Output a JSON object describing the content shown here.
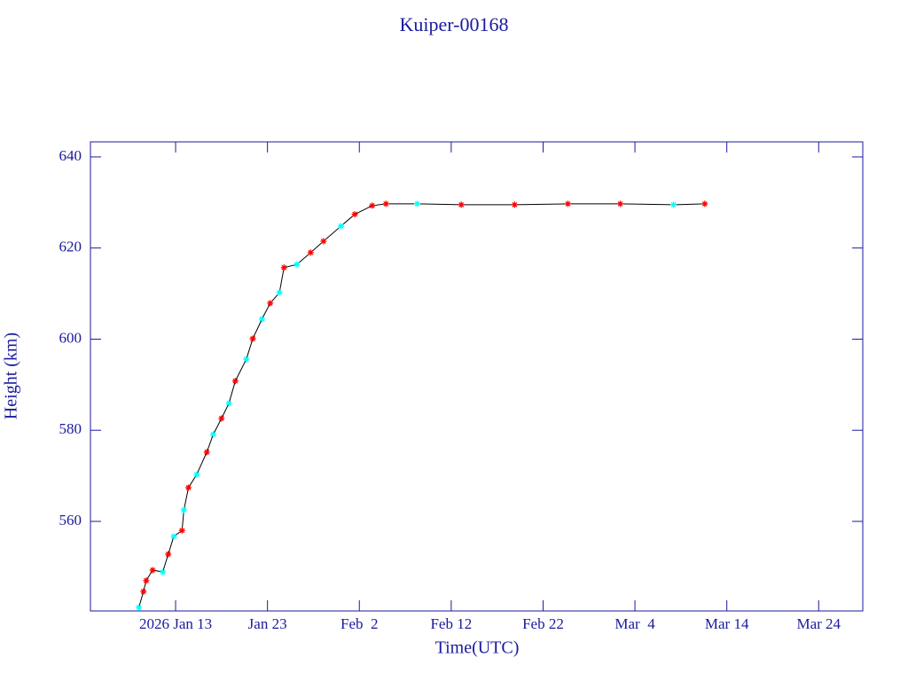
{
  "chart_data": {
    "type": "line",
    "title": "Kuiper-00168",
    "x_label": "Time(UTC)",
    "y_label": "Height (km)",
    "axis_color": "#1a1a9e",
    "xlim": [
      2.73,
      86.8
    ],
    "ylim": [
      540.34,
      643.3
    ],
    "xticks": [
      {
        "value": 12,
        "label": "2026 Jan 13"
      },
      {
        "value": 22,
        "label": "Jan 23"
      },
      {
        "value": 32,
        "label": "Feb  2"
      },
      {
        "value": 42,
        "label": "Feb 12"
      },
      {
        "value": 52,
        "label": "Feb 22"
      },
      {
        "value": 62,
        "label": "Mar  4"
      },
      {
        "value": 72,
        "label": "Mar 14"
      },
      {
        "value": 82,
        "label": "Mar 24"
      }
    ],
    "yticks": [
      560,
      580,
      600,
      620,
      640
    ],
    "series": [
      {
        "color": "#000000",
        "x": [
          8.0,
          8.5,
          8.8,
          9.5,
          10.6,
          11.2,
          11.8,
          12.7,
          12.9,
          13.4,
          14.3,
          15.4,
          16.1,
          17.0,
          17.8,
          18.5,
          19.7,
          20.4,
          21.4,
          22.3,
          23.3,
          23.8,
          25.2,
          26.7,
          28.1,
          30.0,
          31.5,
          33.4,
          34.9,
          38.3,
          43.1,
          48.9,
          54.7,
          60.4,
          66.2,
          69.6
        ],
        "values": [
          541.1,
          544.6,
          547,
          549.3,
          548.9,
          552.8,
          556.7,
          558,
          562.5,
          567.4,
          570.3,
          575.2,
          579.1,
          582.6,
          585.9,
          590.8,
          595.6,
          600.1,
          604.4,
          607.9,
          610.2,
          615.7,
          616.4,
          619,
          621.5,
          624.8,
          627.4,
          629.3,
          629.7,
          629.7,
          629.5,
          629.5,
          629.7,
          629.7,
          629.5,
          629.7
        ],
        "marker_colors": [
          "#00ffff",
          "#ff0000",
          "#ff0000",
          "#ff0000",
          "#00ffff",
          "#ff0000",
          "#00ffff",
          "#ff0000",
          "#00ffff",
          "#ff0000",
          "#00ffff",
          "#ff0000",
          "#00ffff",
          "#ff0000",
          "#00ffff",
          "#ff0000",
          "#00ffff",
          "#ff0000",
          "#00ffff",
          "#ff0000",
          "#00ffff",
          "#ff0000",
          "#00ffff",
          "#ff0000",
          "#ff0000",
          "#00ffff",
          "#ff0000",
          "#ff0000",
          "#ff0000",
          "#00ffff",
          "#ff0000",
          "#ff0000",
          "#ff0000",
          "#ff0000",
          "#00ffff",
          "#ff0000"
        ]
      }
    ]
  }
}
